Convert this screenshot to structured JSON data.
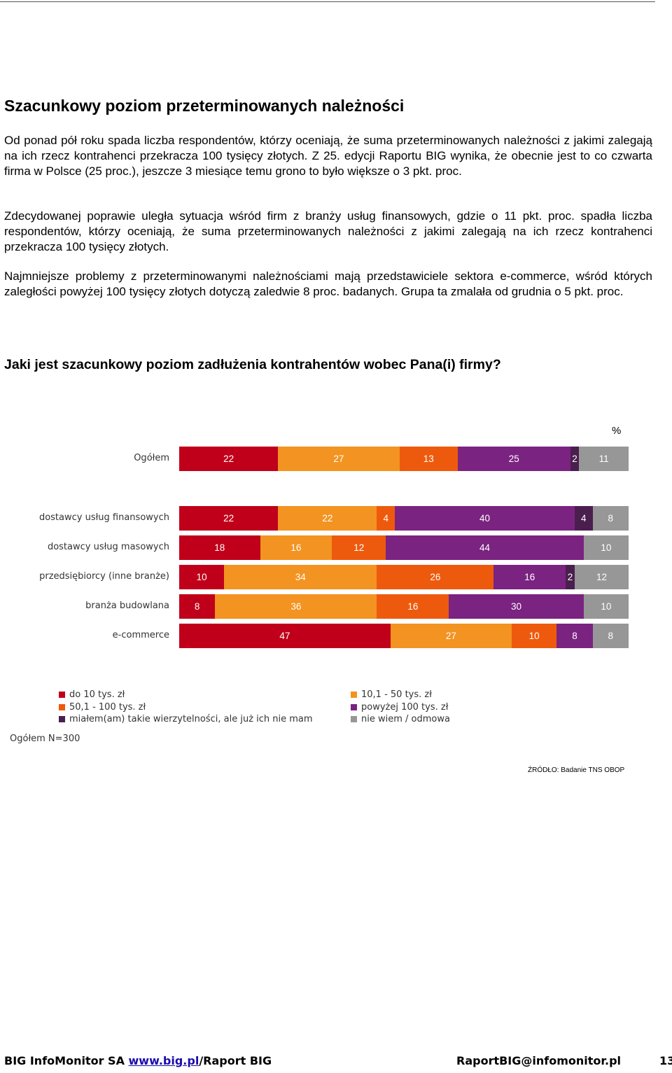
{
  "title": "Szacunkowy poziom przeterminowanych należności",
  "paragraphs": [
    "Od ponad pół roku spada liczba respondentów, którzy oceniają, że suma przeterminowanych należności z jakimi zalegają na ich rzecz kontrahenci przekracza 100 tysięcy złotych. Z 25. edycji Raportu BIG wynika, że obecnie jest to co czwarta firma w Polsce (25 proc.), jeszcze 3 miesiące temu grono to było większe o 3 pkt. proc.",
    "Zdecydowanej poprawie uległa sytuacja wśród firm z branży usług finansowych, gdzie o 11 pkt. proc. spadła liczba respondentów, którzy oceniają, że suma przeterminowanych należności z jakimi zalegają na ich rzecz kontrahenci przekracza 100 tysięcy złotych.",
    "Najmniejsze problemy z przeterminowanymi należnościami mają przedstawiciele sektora e-commerce, wśród których zaległości powyżej 100 tysięcy złotych dotyczą zaledwie 8 proc. badanych. Grupa ta zmalała od grudnia o 5 pkt. proc."
  ],
  "question": "Jaki jest szacunkowy poziom zadłużenia kontrahentów wobec Pana(i) firmy?",
  "chart_data": {
    "type": "bar",
    "orientation": "horizontal-stacked-100",
    "unit": "%",
    "categories": [
      "Ogółem",
      "dostawcy usług finansowych",
      "dostawcy usług masowych",
      "przedsiębiorcy (inne branże)",
      "branża budowlana",
      "e-commerce"
    ],
    "series": [
      {
        "name": "do 10 tys. zł",
        "color": "#c0001a",
        "values": [
          22,
          22,
          18,
          10,
          8,
          47
        ]
      },
      {
        "name": "10,1 - 50 tys. zł",
        "color": "#f39321",
        "values": [
          27,
          22,
          16,
          34,
          36,
          27
        ]
      },
      {
        "name": "50,1 - 100 tys. zł",
        "color": "#ee5a0d",
        "values": [
          13,
          4,
          12,
          26,
          16,
          10
        ]
      },
      {
        "name": "powyżej 100 tys. zł",
        "color": "#7b2381",
        "values": [
          25,
          40,
          44,
          16,
          30,
          8
        ]
      },
      {
        "name": "miałem(am) takie wierzytelności, ale już ich nie mam",
        "color": "#4a1f4e",
        "values": [
          2,
          4,
          0,
          2,
          0,
          0
        ]
      },
      {
        "name": "nie wiem / odmowa",
        "color": "#979797",
        "values": [
          11,
          8,
          10,
          12,
          10,
          8
        ]
      }
    ],
    "xlim": [
      0,
      100
    ],
    "legend_position": "bottom",
    "note": "Ogółem N=300",
    "source": "ŹRÓDŁO: Badanie TNS OBOP"
  },
  "footer": {
    "left_prefix": "BIG InfoMonitor SA ",
    "link": "www.big.pl",
    "left_suffix": "/Raport BIG",
    "email": "RaportBIG@infomonitor.pl",
    "page": "13"
  }
}
